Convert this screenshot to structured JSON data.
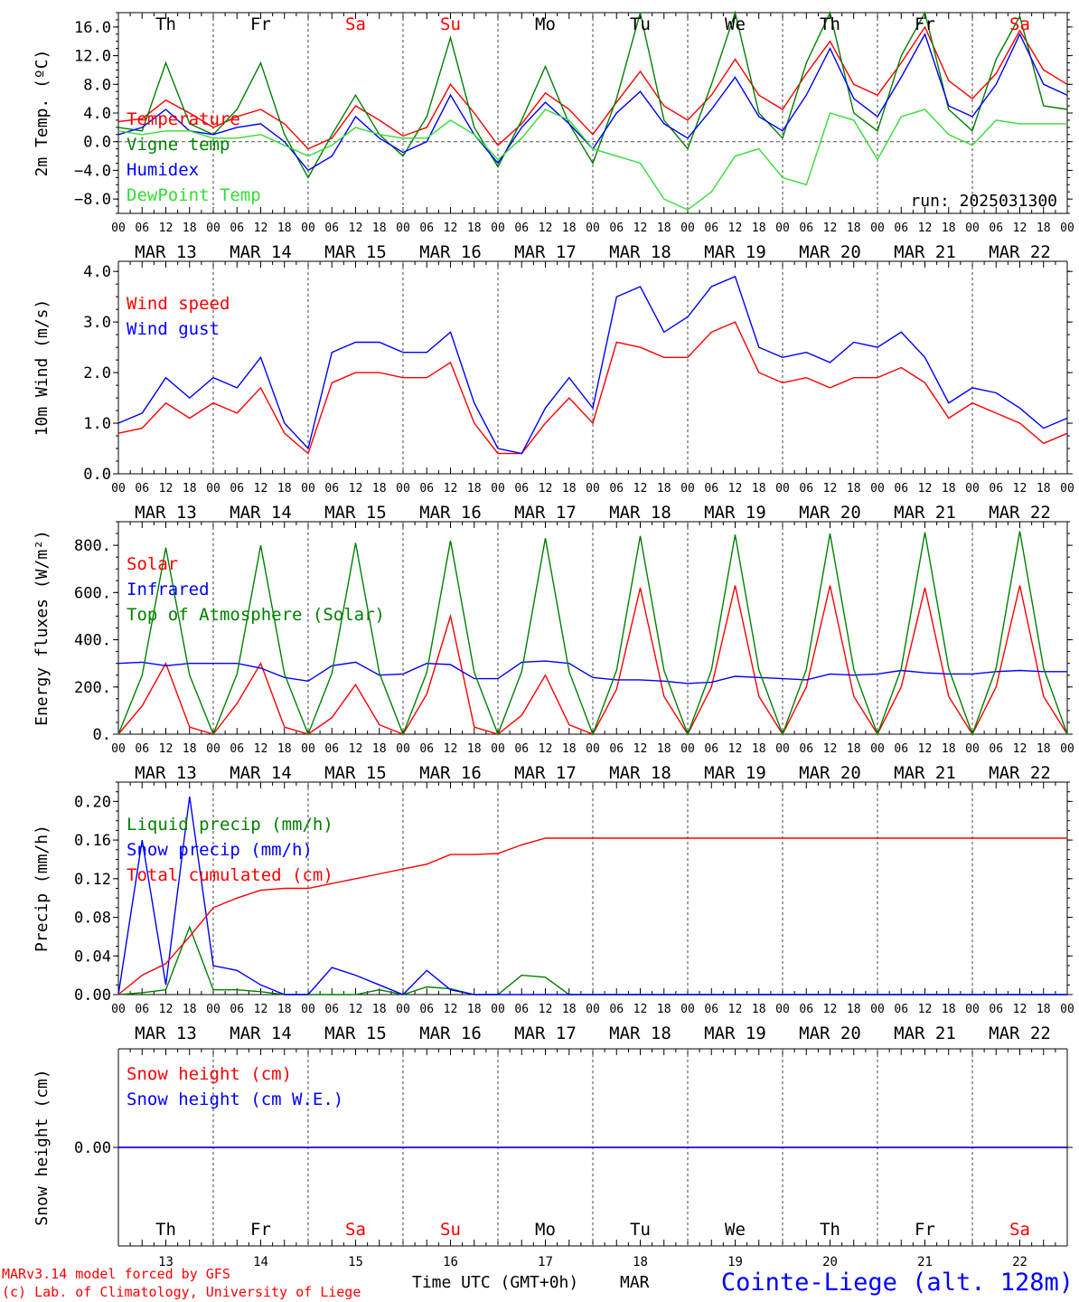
{
  "days": [
    {
      "abbr": "Th",
      "date": "MAR 13",
      "num": "13",
      "weekend": false
    },
    {
      "abbr": "Fr",
      "date": "MAR 14",
      "num": "14",
      "weekend": false
    },
    {
      "abbr": "Sa",
      "date": "MAR 15",
      "num": "15",
      "weekend": true
    },
    {
      "abbr": "Su",
      "date": "MAR 16",
      "num": "16",
      "weekend": true
    },
    {
      "abbr": "Mo",
      "date": "MAR 17",
      "num": "17",
      "weekend": false
    },
    {
      "abbr": "Tu",
      "date": "MAR 18",
      "num": "18",
      "weekend": false
    },
    {
      "abbr": "We",
      "date": "MAR 19",
      "num": "19",
      "weekend": false
    },
    {
      "abbr": "Th",
      "date": "MAR 20",
      "num": "20",
      "weekend": false
    },
    {
      "abbr": "Fr",
      "date": "MAR 21",
      "num": "21",
      "weekend": false
    },
    {
      "abbr": "Sa",
      "date": "MAR 22",
      "num": "22",
      "weekend": true
    }
  ],
  "hour_ticks": [
    "00",
    "06",
    "12",
    "18"
  ],
  "colors": {
    "red": "#ff0000",
    "green": "#008000",
    "blue": "#0000ff",
    "lightgreen": "#33dd33",
    "black": "#000000"
  },
  "run_label": "run: 2025031300",
  "footer": {
    "model": "MARv3.14 model forced by GFS",
    "lab": "(c) Lab. of Climatology, University of Liege",
    "time_axis": "Time UTC (GMT+0h)",
    "month": "MAR",
    "station": "Cointe-Liege (alt. 128m)"
  },
  "chart_data": [
    {
      "type": "line",
      "ylabel": "2m Temp. (ºC)",
      "ylim": [
        -10,
        18
      ],
      "yticks": [
        16,
        12,
        8,
        4,
        0,
        -4,
        -8
      ],
      "yticklabels": [
        "16.0",
        "12.0",
        "8.0",
        "4.0",
        "0.0",
        "−4.0",
        "−8.0"
      ],
      "zero_line": true,
      "x_days": [
        0,
        0.25,
        0.5,
        0.75,
        1,
        1.25,
        1.5,
        1.75,
        2,
        2.25,
        2.5,
        2.75,
        3,
        3.25,
        3.5,
        3.75,
        4,
        4.25,
        4.5,
        4.75,
        5,
        5.25,
        5.5,
        5.75,
        6,
        6.25,
        6.5,
        6.75,
        7,
        7.25,
        7.5,
        7.75,
        8,
        8.25,
        8.5,
        8.75,
        9,
        9.25,
        9.5,
        9.75,
        10
      ],
      "series": [
        {
          "name": "Temperature",
          "color": "red",
          "values": [
            2.8,
            3.2,
            5.8,
            4.0,
            2.0,
            3.5,
            4.5,
            2.5,
            -1.0,
            0.5,
            5.0,
            3.0,
            0.8,
            2.0,
            8.0,
            4.0,
            -0.5,
            2.5,
            6.8,
            4.5,
            1.0,
            5.5,
            9.8,
            5.0,
            3.0,
            6.5,
            11.5,
            6.5,
            4.5,
            9.5,
            14.0,
            8.0,
            6.5,
            11.0,
            16.0,
            8.5,
            6.0,
            9.5,
            15.5,
            10.0,
            8.0
          ]
        },
        {
          "name": "Vigne temp",
          "color": "green",
          "values": [
            2.0,
            1.5,
            11.0,
            2.5,
            1.0,
            4.5,
            11.0,
            1.0,
            -5.0,
            1.0,
            6.5,
            1.0,
            -2.0,
            3.5,
            14.5,
            2.0,
            -3.5,
            3.0,
            10.5,
            2.5,
            -3.0,
            6.0,
            18.0,
            3.0,
            -1.0,
            8.0,
            18.0,
            4.0,
            0.5,
            11.0,
            18.0,
            4.0,
            1.5,
            12.0,
            18.0,
            4.5,
            1.5,
            11.5,
            17.5,
            5.0,
            4.5
          ]
        },
        {
          "name": "Humidex",
          "color": "blue",
          "values": [
            1.0,
            2.0,
            4.5,
            1.5,
            1.0,
            2.0,
            2.5,
            0.0,
            -4.0,
            -2.0,
            3.5,
            0.5,
            -1.5,
            0.0,
            6.5,
            1.0,
            -3.0,
            2.0,
            5.5,
            2.5,
            -1.0,
            4.0,
            7.0,
            2.5,
            0.5,
            4.5,
            9.0,
            3.5,
            1.5,
            6.5,
            13.0,
            6.0,
            3.5,
            9.0,
            15.0,
            5.0,
            3.5,
            8.0,
            15.0,
            8.0,
            6.5
          ]
        },
        {
          "name": "DewPoint Temp",
          "color": "lightgreen",
          "values": [
            1.5,
            1.0,
            1.5,
            1.5,
            0.5,
            0.5,
            1.0,
            -0.5,
            -2.0,
            -0.5,
            2.0,
            1.0,
            0.5,
            0.5,
            3.0,
            1.0,
            -2.5,
            0.5,
            4.5,
            3.0,
            -1.0,
            -2.0,
            -3.0,
            -8.0,
            -9.5,
            -7.0,
            -2.0,
            -1.0,
            -5.0,
            -6.0,
            4.0,
            3.0,
            -2.5,
            3.5,
            4.5,
            1.0,
            -0.5,
            3.0,
            2.5,
            2.5,
            2.5
          ]
        }
      ]
    },
    {
      "type": "line",
      "ylabel": "10m Wind (m/s)",
      "ylim": [
        0,
        4.2
      ],
      "yticks": [
        4,
        3,
        2,
        1,
        0
      ],
      "yticklabels": [
        "4.0",
        "3.0",
        "2.0",
        "1.0",
        "0.0"
      ],
      "x_days": [
        0,
        0.25,
        0.5,
        0.75,
        1,
        1.25,
        1.5,
        1.75,
        2,
        2.25,
        2.5,
        2.75,
        3,
        3.25,
        3.5,
        3.75,
        4,
        4.25,
        4.5,
        4.75,
        5,
        5.25,
        5.5,
        5.75,
        6,
        6.25,
        6.5,
        6.75,
        7,
        7.25,
        7.5,
        7.75,
        8,
        8.25,
        8.5,
        8.75,
        9,
        9.25,
        9.5,
        9.75,
        10
      ],
      "series": [
        {
          "name": "Wind speed",
          "color": "red",
          "values": [
            0.8,
            0.9,
            1.4,
            1.1,
            1.4,
            1.2,
            1.7,
            0.8,
            0.4,
            1.8,
            2.0,
            2.0,
            1.9,
            1.9,
            2.2,
            1.0,
            0.4,
            0.4,
            1.0,
            1.5,
            1.0,
            2.6,
            2.5,
            2.3,
            2.3,
            2.8,
            3.0,
            2.0,
            1.8,
            1.9,
            1.7,
            1.9,
            1.9,
            2.1,
            1.8,
            1.1,
            1.4,
            1.2,
            1.0,
            0.6,
            0.8
          ]
        },
        {
          "name": "Wind gust",
          "color": "blue",
          "values": [
            1.0,
            1.2,
            1.9,
            1.5,
            1.9,
            1.7,
            2.3,
            1.0,
            0.5,
            2.4,
            2.6,
            2.6,
            2.4,
            2.4,
            2.8,
            1.4,
            0.5,
            0.4,
            1.3,
            1.9,
            1.3,
            3.5,
            3.7,
            2.8,
            3.1,
            3.7,
            3.9,
            2.5,
            2.3,
            2.4,
            2.2,
            2.6,
            2.5,
            2.8,
            2.3,
            1.4,
            1.7,
            1.6,
            1.3,
            0.9,
            1.1
          ]
        }
      ]
    },
    {
      "type": "line",
      "ylabel": "Energy fluxes (W/m²)",
      "ylim": [
        0,
        900
      ],
      "yticks": [
        800,
        600,
        400,
        200,
        0
      ],
      "yticklabels": [
        "800.",
        "600.",
        "400.",
        "200.",
        "0."
      ],
      "x_days": [
        0,
        0.25,
        0.5,
        0.75,
        1,
        1.25,
        1.5,
        1.75,
        2,
        2.25,
        2.5,
        2.75,
        3,
        3.25,
        3.5,
        3.75,
        4,
        4.25,
        4.5,
        4.75,
        5,
        5.25,
        5.5,
        5.75,
        6,
        6.25,
        6.5,
        6.75,
        7,
        7.25,
        7.5,
        7.75,
        8,
        8.25,
        8.5,
        8.75,
        9,
        9.25,
        9.5,
        9.75,
        10
      ],
      "series": [
        {
          "name": "Solar",
          "color": "red",
          "values": [
            0,
            120,
            300,
            30,
            0,
            130,
            300,
            30,
            0,
            70,
            210,
            40,
            0,
            170,
            500,
            30,
            0,
            80,
            250,
            40,
            0,
            190,
            620,
            160,
            0,
            200,
            630,
            160,
            0,
            200,
            630,
            160,
            0,
            200,
            620,
            160,
            0,
            200,
            630,
            160,
            0
          ]
        },
        {
          "name": "Infrared",
          "color": "blue",
          "values": [
            300,
            305,
            290,
            300,
            300,
            300,
            280,
            240,
            225,
            290,
            305,
            250,
            255,
            300,
            295,
            235,
            235,
            305,
            310,
            300,
            240,
            230,
            230,
            225,
            215,
            220,
            245,
            240,
            235,
            230,
            255,
            250,
            255,
            270,
            260,
            255,
            255,
            265,
            270,
            265,
            265
          ]
        },
        {
          "name": "Top of Atmosphere (Solar)",
          "color": "green",
          "values": [
            0,
            250,
            790,
            250,
            0,
            255,
            800,
            255,
            0,
            258,
            810,
            258,
            0,
            262,
            820,
            262,
            0,
            265,
            830,
            265,
            0,
            270,
            840,
            270,
            0,
            272,
            845,
            272,
            0,
            275,
            850,
            275,
            0,
            278,
            855,
            278,
            0,
            280,
            860,
            280,
            0
          ]
        }
      ]
    },
    {
      "type": "line",
      "ylabel": "Precip (mm/h)",
      "ylim": [
        0,
        0.22
      ],
      "yticks": [
        0.2,
        0.16,
        0.12,
        0.08,
        0.04,
        0
      ],
      "yticklabels": [
        "0.20",
        "0.16",
        "0.12",
        "0.08",
        "0.04",
        "0.00"
      ],
      "x_days": [
        0,
        0.25,
        0.5,
        0.75,
        1,
        1.25,
        1.5,
        1.75,
        2,
        2.25,
        2.5,
        2.75,
        3,
        3.25,
        3.5,
        3.75,
        4,
        4.25,
        4.5,
        4.75,
        5,
        5.25,
        5.5,
        5.75,
        6,
        6.25,
        6.5,
        6.75,
        7,
        7.25,
        7.5,
        7.75,
        8,
        8.25,
        8.5,
        8.75,
        9,
        9.25,
        9.5,
        9.75,
        10
      ],
      "series": [
        {
          "name": "Liquid precip (mm/h)",
          "color": "green",
          "values": [
            0,
            0.002,
            0.005,
            0.07,
            0.005,
            0.005,
            0.003,
            0,
            0,
            0,
            0,
            0.005,
            0,
            0.008,
            0.006,
            0,
            0,
            0.02,
            0.018,
            0,
            0,
            0,
            0,
            0,
            0,
            0,
            0,
            0,
            0,
            0,
            0,
            0,
            0,
            0,
            0,
            0,
            0,
            0,
            0,
            0,
            0
          ]
        },
        {
          "name": "Snow precip (mm/h)",
          "color": "blue",
          "values": [
            0,
            0.16,
            0.01,
            0.205,
            0.03,
            0.025,
            0.01,
            0,
            0,
            0.028,
            0.02,
            0.01,
            0,
            0.025,
            0.005,
            0,
            0,
            0,
            0,
            0,
            0,
            0,
            0,
            0,
            0,
            0,
            0,
            0,
            0,
            0,
            0,
            0,
            0,
            0,
            0,
            0,
            0,
            0,
            0,
            0,
            0
          ]
        },
        {
          "name": "Total cumulated (cm)",
          "color": "red",
          "values": [
            0,
            0.02,
            0.032,
            0.06,
            0.09,
            0.1,
            0.108,
            0.11,
            0.11,
            0.115,
            0.12,
            0.125,
            0.13,
            0.135,
            0.145,
            0.145,
            0.146,
            0.155,
            0.162,
            0.162,
            0.162,
            0.162,
            0.162,
            0.162,
            0.162,
            0.162,
            0.162,
            0.162,
            0.162,
            0.162,
            0.162,
            0.162,
            0.162,
            0.162,
            0.162,
            0.162,
            0.162,
            0.162,
            0.162,
            0.162,
            0.162
          ]
        }
      ]
    },
    {
      "type": "line",
      "ylabel": "Snow height (cm)",
      "ylim": [
        -1,
        1
      ],
      "yticks": [
        0
      ],
      "yticklabels": [
        "0.00"
      ],
      "x_days": [
        0,
        10
      ],
      "series": [
        {
          "name": "Snow height (cm)",
          "color": "red",
          "values": [
            0,
            0
          ]
        },
        {
          "name": "Snow height (cm W.E.)",
          "color": "blue",
          "values": [
            0,
            0
          ]
        }
      ]
    }
  ]
}
